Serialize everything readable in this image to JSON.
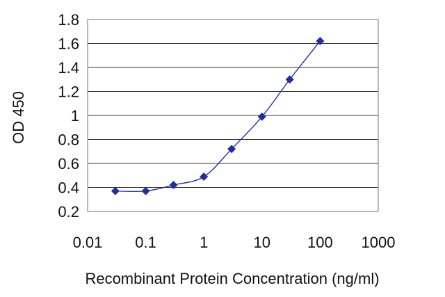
{
  "chart_data": {
    "type": "line",
    "title": "",
    "xlabel": "Recombinant Protein Concentration (ng/ml)",
    "ylabel": "OD 450",
    "x_scale": "log",
    "xlim": [
      0.01,
      1000
    ],
    "ylim": [
      0.2,
      1.8
    ],
    "x_ticks": [
      "0.01",
      "0.1",
      "1",
      "10",
      "100",
      "1000"
    ],
    "y_ticks": [
      "0.2",
      "0.4",
      "0.6",
      "0.8",
      "1",
      "1.2",
      "1.4",
      "1.6",
      "1.8"
    ],
    "grid": "horizontal",
    "series": [
      {
        "color": "#1f2fa0",
        "marker": "diamond",
        "x": [
          0.03,
          0.1,
          0.3,
          1,
          3,
          10,
          30,
          100
        ],
        "y": [
          0.37,
          0.37,
          0.42,
          0.49,
          0.72,
          0.99,
          1.3,
          1.62
        ]
      }
    ]
  }
}
